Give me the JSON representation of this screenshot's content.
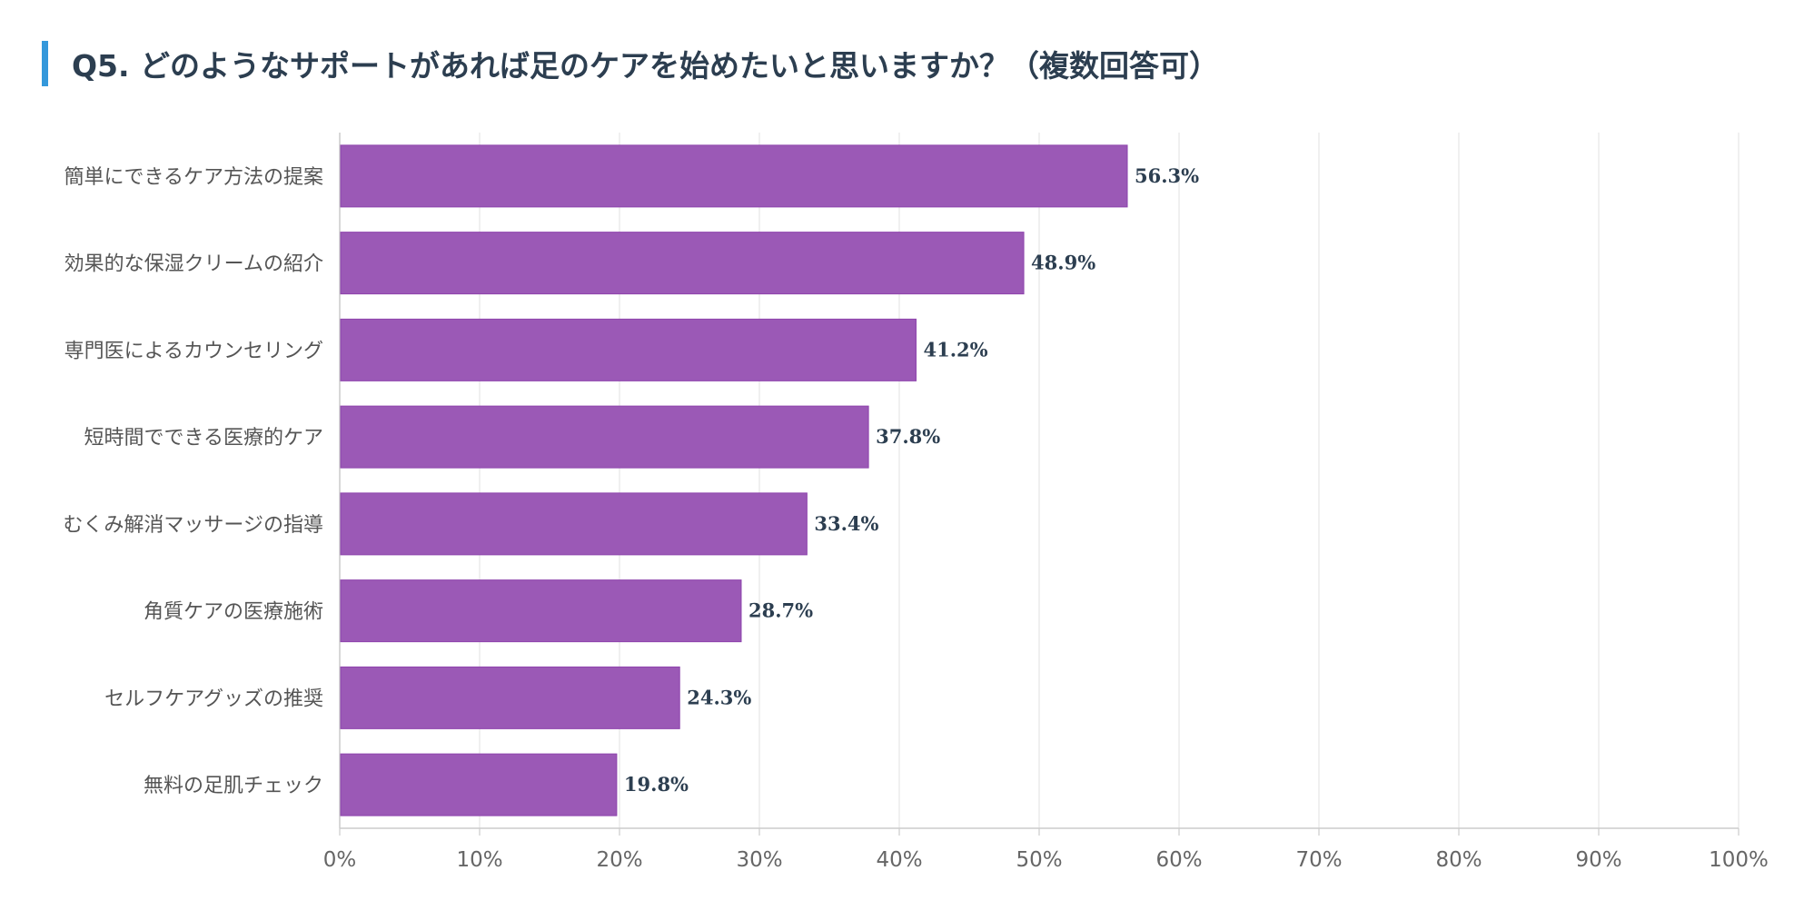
{
  "title": "Q5. どのようなサポートがあれば足のケアを始めたいと思いますか？（複数回答可）",
  "colors": {
    "accent": "#3498db",
    "bar": "#9b59b6",
    "bar_border": "#8e44ad",
    "grid": "#e6e6e6",
    "axis": "#cccccc"
  },
  "chart_data": {
    "type": "bar",
    "orientation": "horizontal",
    "categories": [
      "簡単にできるケア方法の提案",
      "効果的な保湿クリームの紹介",
      "専門医によるカウンセリング",
      "短時間でできる医療的ケア",
      "むくみ解消マッサージの指導",
      "角質ケアの医療施術",
      "セルフケアグッズの推奨",
      "無料の足肌チェック"
    ],
    "values": [
      56.3,
      48.9,
      41.2,
      37.8,
      33.4,
      28.7,
      24.3,
      19.8
    ],
    "value_labels": [
      "56.3%",
      "48.9%",
      "41.2%",
      "37.8%",
      "33.4%",
      "28.7%",
      "24.3%",
      "19.8%"
    ],
    "xlim": [
      0,
      100
    ],
    "xticks": [
      0,
      10,
      20,
      30,
      40,
      50,
      60,
      70,
      80,
      90,
      100
    ],
    "xtick_labels": [
      "0%",
      "10%",
      "20%",
      "30%",
      "40%",
      "50%",
      "60%",
      "70%",
      "80%",
      "90%",
      "100%"
    ],
    "grid": true,
    "legend": "none"
  }
}
